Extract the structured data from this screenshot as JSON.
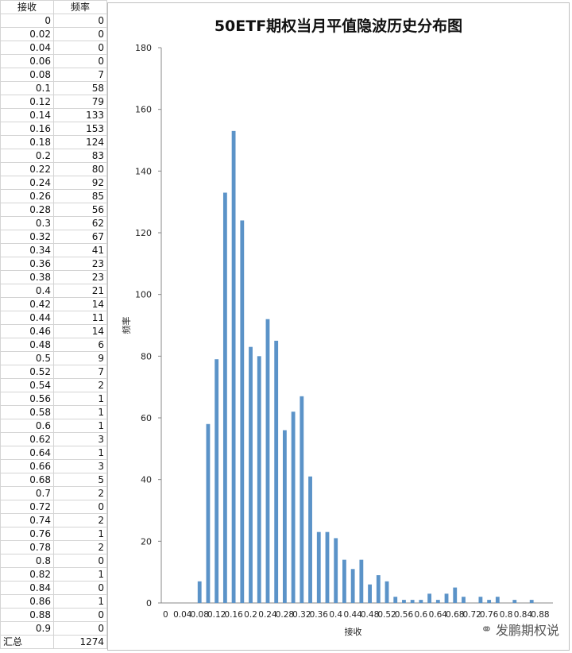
{
  "table": {
    "headers": [
      "接收",
      "频率"
    ],
    "rows": [
      [
        "0",
        "0"
      ],
      [
        "0.02",
        "0"
      ],
      [
        "0.04",
        "0"
      ],
      [
        "0.06",
        "0"
      ],
      [
        "0.08",
        "7"
      ],
      [
        "0.1",
        "58"
      ],
      [
        "0.12",
        "79"
      ],
      [
        "0.14",
        "133"
      ],
      [
        "0.16",
        "153"
      ],
      [
        "0.18",
        "124"
      ],
      [
        "0.2",
        "83"
      ],
      [
        "0.22",
        "80"
      ],
      [
        "0.24",
        "92"
      ],
      [
        "0.26",
        "85"
      ],
      [
        "0.28",
        "56"
      ],
      [
        "0.3",
        "62"
      ],
      [
        "0.32",
        "67"
      ],
      [
        "0.34",
        "41"
      ],
      [
        "0.36",
        "23"
      ],
      [
        "0.38",
        "23"
      ],
      [
        "0.4",
        "21"
      ],
      [
        "0.42",
        "14"
      ],
      [
        "0.44",
        "11"
      ],
      [
        "0.46",
        "14"
      ],
      [
        "0.48",
        "6"
      ],
      [
        "0.5",
        "9"
      ],
      [
        "0.52",
        "7"
      ],
      [
        "0.54",
        "2"
      ],
      [
        "0.56",
        "1"
      ],
      [
        "0.58",
        "1"
      ],
      [
        "0.6",
        "1"
      ],
      [
        "0.62",
        "3"
      ],
      [
        "0.64",
        "1"
      ],
      [
        "0.66",
        "3"
      ],
      [
        "0.68",
        "5"
      ],
      [
        "0.7",
        "2"
      ],
      [
        "0.72",
        "0"
      ],
      [
        "0.74",
        "2"
      ],
      [
        "0.76",
        "1"
      ],
      [
        "0.78",
        "2"
      ],
      [
        "0.8",
        "0"
      ],
      [
        "0.82",
        "1"
      ],
      [
        "0.84",
        "0"
      ],
      [
        "0.86",
        "1"
      ],
      [
        "0.88",
        "0"
      ],
      [
        "0.9",
        "0"
      ]
    ],
    "total_label": "汇总",
    "total_value": "1274"
  },
  "chart_data": {
    "type": "bar",
    "title": "50ETF期权当月平值隐波历史分布图",
    "xlabel": "接收",
    "ylabel": "频率",
    "ylim": [
      0,
      180
    ],
    "yticks": [
      0,
      20,
      40,
      60,
      80,
      100,
      120,
      140,
      160,
      180
    ],
    "categories": [
      "0",
      "0.02",
      "0.04",
      "0.06",
      "0.08",
      "0.1",
      "0.12",
      "0.14",
      "0.16",
      "0.18",
      "0.2",
      "0.22",
      "0.24",
      "0.26",
      "0.28",
      "0.3",
      "0.32",
      "0.34",
      "0.36",
      "0.38",
      "0.4",
      "0.42",
      "0.44",
      "0.46",
      "0.48",
      "0.5",
      "0.52",
      "0.54",
      "0.56",
      "0.58",
      "0.6",
      "0.62",
      "0.64",
      "0.66",
      "0.68",
      "0.7",
      "0.72",
      "0.74",
      "0.76",
      "0.78",
      "0.8",
      "0.82",
      "0.84",
      "0.86",
      "0.88",
      "0.9"
    ],
    "values": [
      0,
      0,
      0,
      0,
      7,
      58,
      79,
      133,
      153,
      124,
      83,
      80,
      92,
      85,
      56,
      62,
      67,
      41,
      23,
      23,
      21,
      14,
      11,
      14,
      6,
      9,
      7,
      2,
      1,
      1,
      1,
      3,
      1,
      3,
      5,
      2,
      0,
      2,
      1,
      2,
      0,
      1,
      0,
      1,
      0,
      0
    ],
    "xtick_labels": [
      "0",
      "0.04",
      "0.08",
      "0.12",
      "0.16",
      "0.2",
      "0.24",
      "0.28",
      "0.32",
      "0.36",
      "0.4",
      "0.44",
      "0.48",
      "0.52",
      "0.56",
      "0.6",
      "0.64",
      "0.68",
      "0.72",
      "0.76",
      "0.8",
      "0.84",
      "0.88"
    ],
    "bar_color": "#5b93c8"
  },
  "watermark": {
    "icon": "wechat-icon",
    "text": "发鹏期权说"
  }
}
